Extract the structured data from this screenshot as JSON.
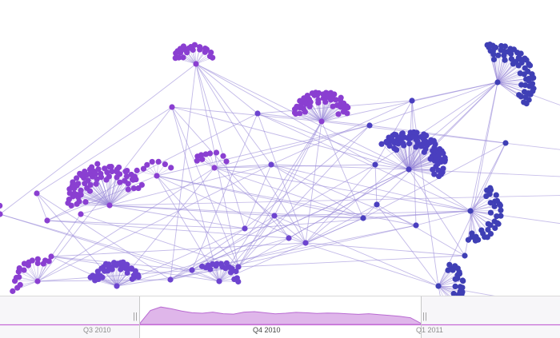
{
  "graph": {
    "colors": {
      "link": "#9a8ad8",
      "purple": "#8a3fd1",
      "violet": "#6d44cf",
      "indigo": "#4a3fbf",
      "blue": "#3f3fb5"
    },
    "icon": "network-graph"
  },
  "timeline": {
    "ticks": [
      {
        "label": "Q3  2010",
        "state": "inactive"
      },
      {
        "label": "Q4  2010",
        "state": "active"
      },
      {
        "label": "Q1  2011",
        "state": "inactive"
      }
    ],
    "area_color": "#d9a9e6",
    "area_stroke": "#b96bd2",
    "baseline_color": "#c56ad6",
    "activity": [
      0.05,
      0.62,
      0.78,
      0.7,
      0.6,
      0.52,
      0.5,
      0.55,
      0.48,
      0.46,
      0.55,
      0.57,
      0.52,
      0.47,
      0.5,
      0.54,
      0.52,
      0.49,
      0.51,
      0.5,
      0.47,
      0.45,
      0.48,
      0.44,
      0.4,
      0.36,
      0.3,
      0.05
    ],
    "handle_icon": "drag-handle-icon"
  }
}
